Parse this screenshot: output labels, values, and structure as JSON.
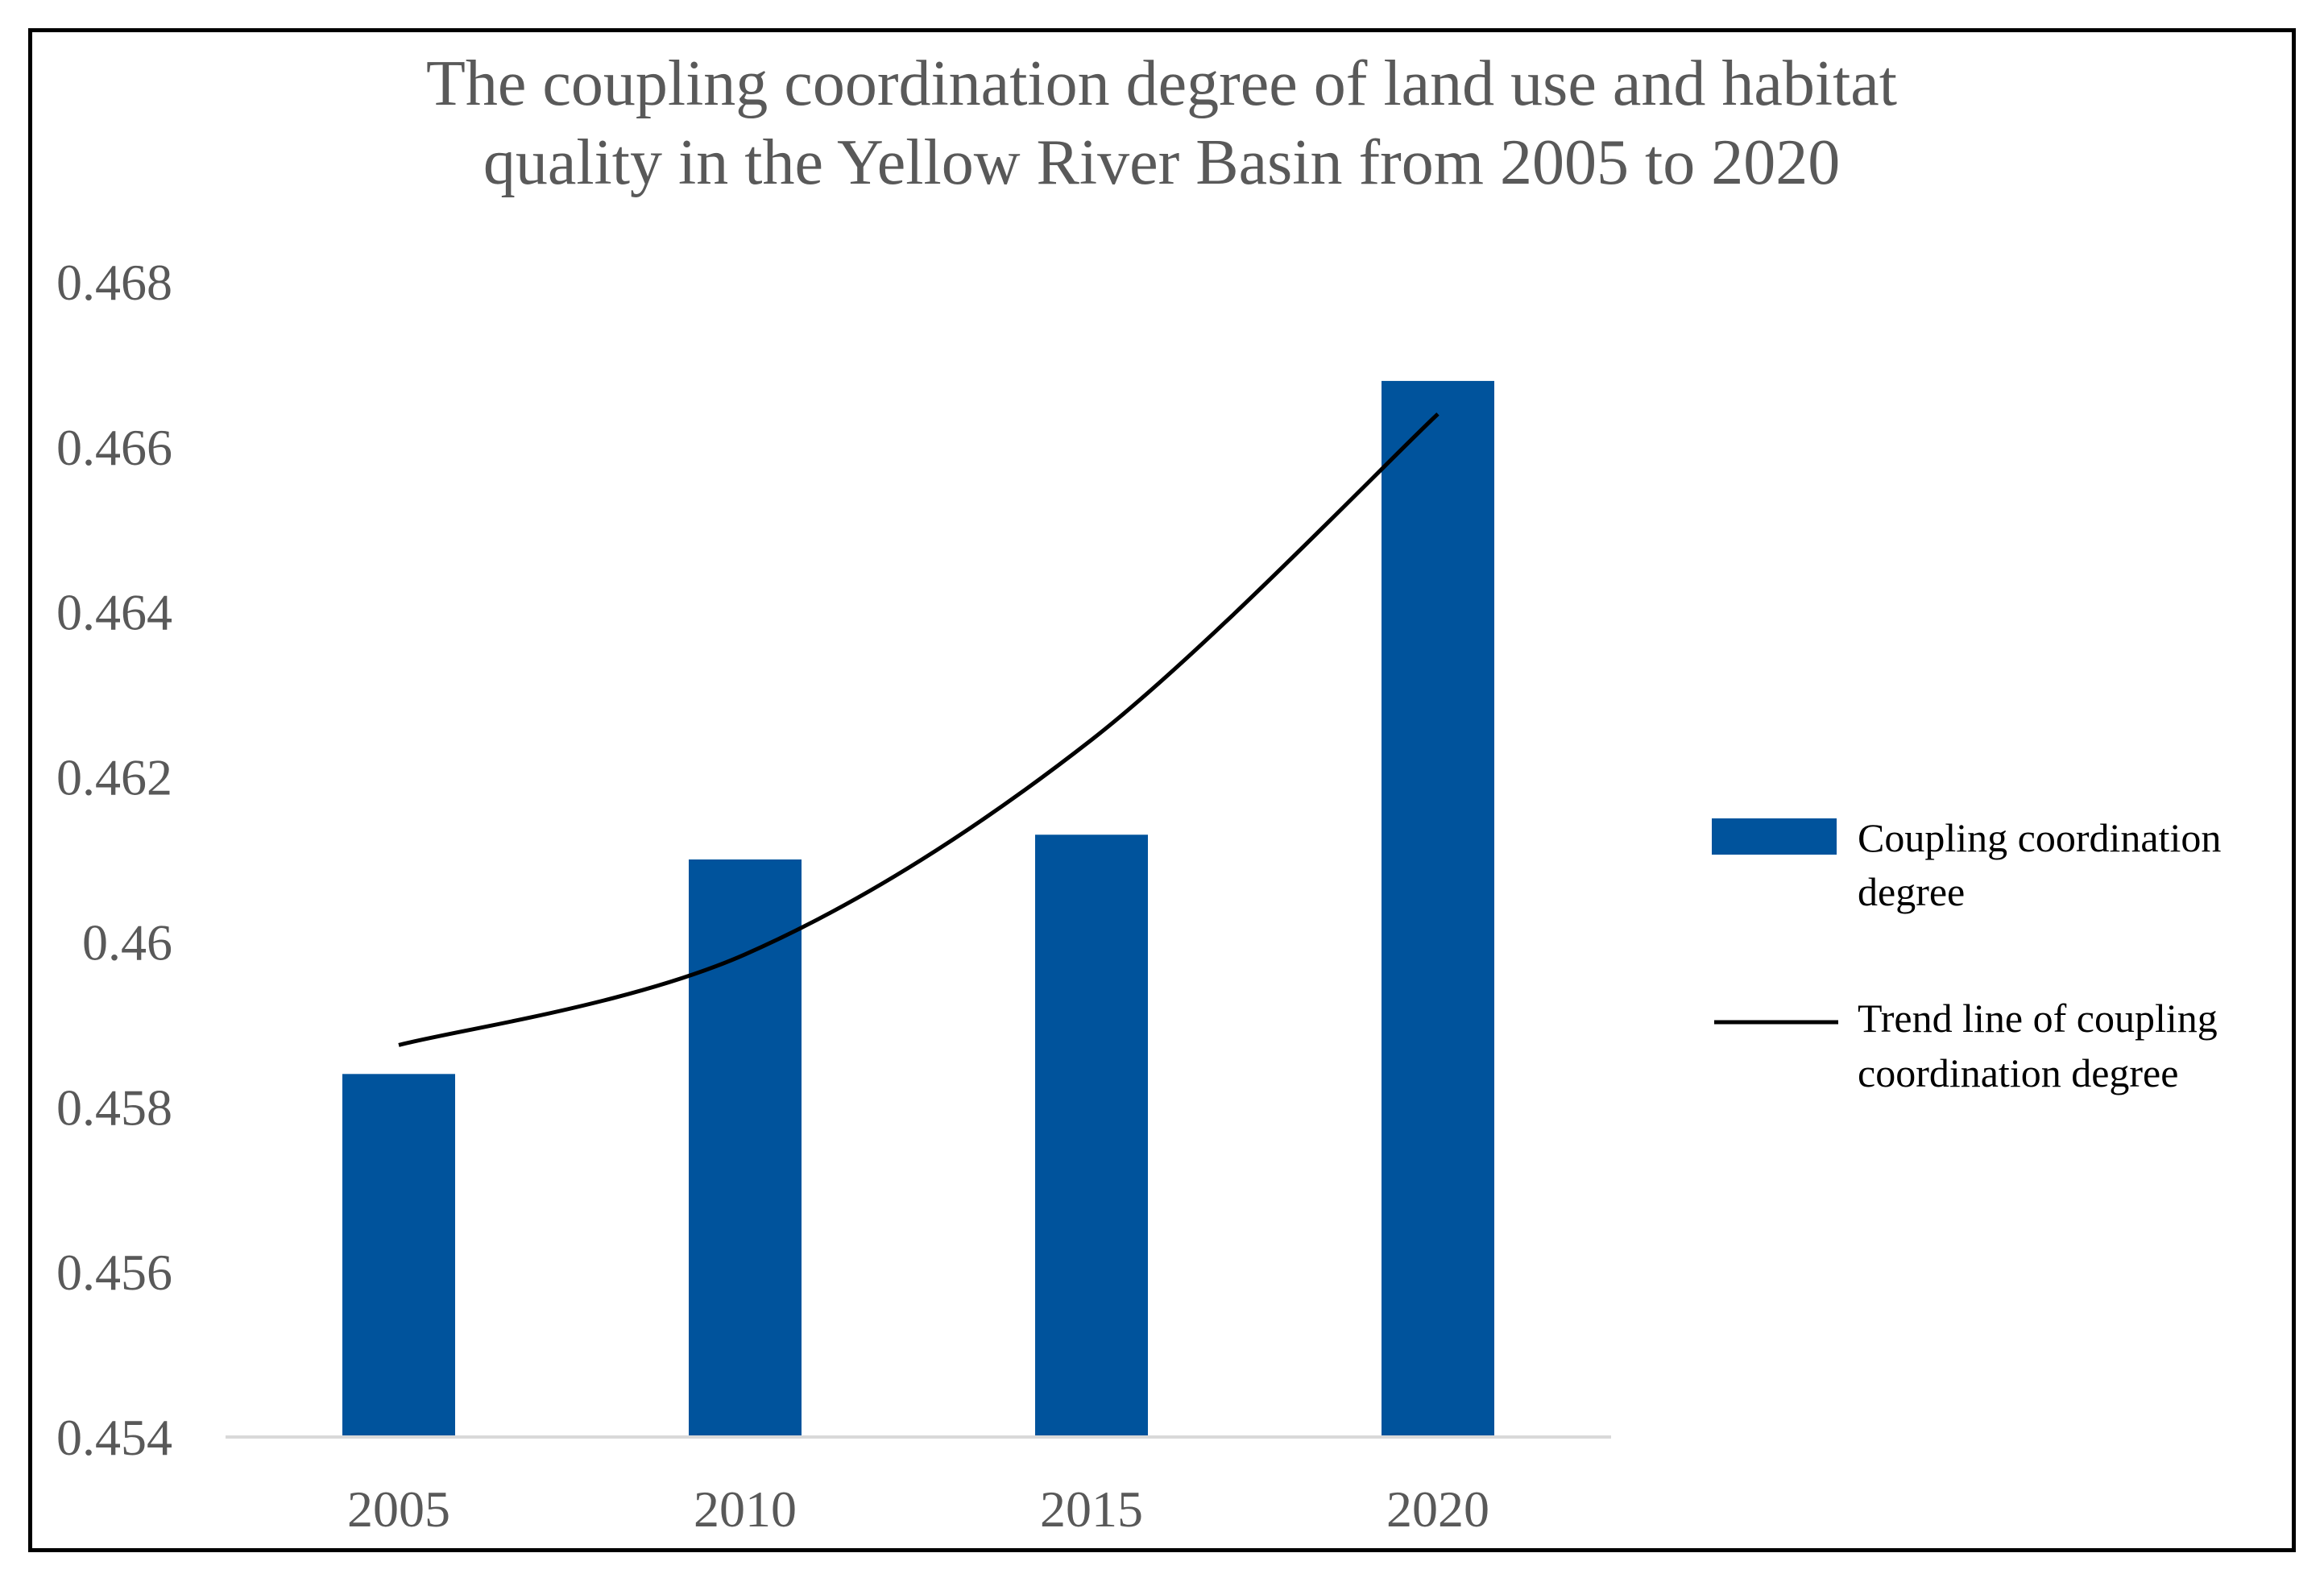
{
  "chart_data": {
    "type": "bar",
    "title": "The coupling coordination degree of land use and habitat quality in the Yellow River Basin from 2005 to 2020",
    "title_lines": [
      "The coupling coordination degree of land use and habitat",
      "quality in the Yellow River Basin from 2005 to 2020"
    ],
    "categories": [
      "2005",
      "2010",
      "2015",
      "2020"
    ],
    "series": [
      {
        "name": "Coupling coordination degree",
        "name_lines": [
          "Coupling coordination",
          "degree"
        ],
        "type": "bar",
        "color": "#00539C",
        "values": [
          0.4584,
          0.461,
          0.4613,
          0.4668
        ]
      },
      {
        "name": "Trend line of coupling coordination degree",
        "name_lines": [
          "Trend line of coupling",
          "coordination degree"
        ],
        "type": "line",
        "color": "#000000",
        "values": [
          0.45875,
          0.45985,
          0.46245,
          0.4664
        ]
      }
    ],
    "y_ticks": [
      "0.454",
      "0.456",
      "0.458",
      "0.46",
      "0.462",
      "0.464",
      "0.466",
      "0.468"
    ],
    "ylim": [
      0.454,
      0.468
    ],
    "xlabel": "",
    "ylabel": "",
    "grid": false,
    "legend_position": "right"
  }
}
